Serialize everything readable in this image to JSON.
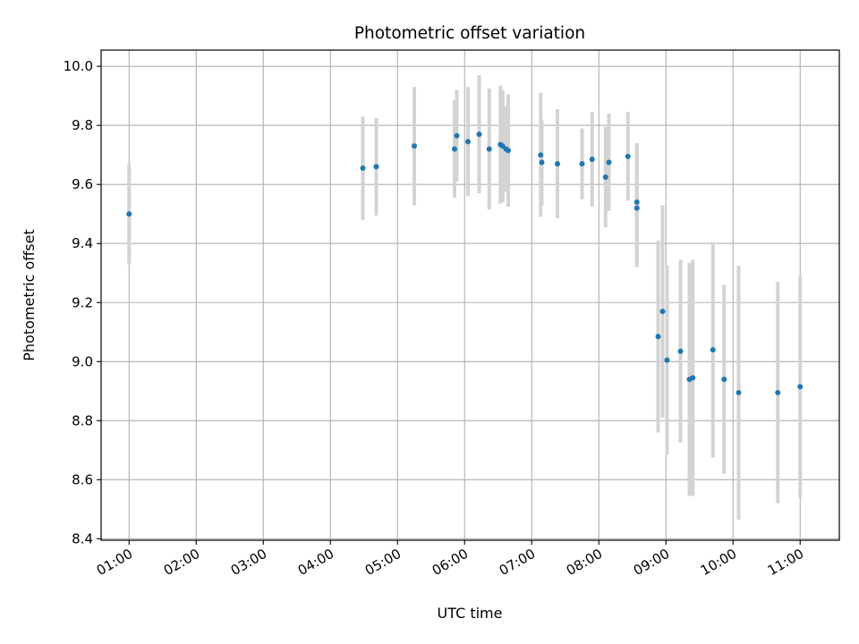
{
  "chart_data": {
    "type": "scatter",
    "title": "Photometric offset variation",
    "xlabel": "UTC time",
    "ylabel": "Photometric offset",
    "xlim": [
      "00:35",
      "11:35"
    ],
    "ylim": [
      8.395,
      10.055
    ],
    "x_ticks": [
      "01:00",
      "02:00",
      "03:00",
      "04:00",
      "05:00",
      "06:00",
      "07:00",
      "08:00",
      "09:00",
      "10:00",
      "11:00"
    ],
    "y_ticks": [
      8.4,
      8.6,
      8.8,
      9.0,
      9.2,
      9.4,
      9.6,
      9.8,
      10.0
    ],
    "y_tick_labels": [
      "8.4",
      "8.6",
      "8.8",
      "9.0",
      "9.2",
      "9.4",
      "9.6",
      "9.8",
      "10.0"
    ],
    "grid": true,
    "marker_color": "#1f77b4",
    "errorbar_color": "#d3d3d3",
    "series": [
      {
        "points": [
          {
            "x": "01:00",
            "y": 9.5,
            "yerr": 0.17
          },
          {
            "x": "04:29",
            "y": 9.655,
            "yerr": 0.175
          },
          {
            "x": "04:41",
            "y": 9.66,
            "yerr": 0.165
          },
          {
            "x": "05:15",
            "y": 9.73,
            "yerr": 0.2
          },
          {
            "x": "05:51",
            "y": 9.72,
            "yerr": 0.165
          },
          {
            "x": "05:53",
            "y": 9.765,
            "yerr": 0.155
          },
          {
            "x": "06:03",
            "y": 9.745,
            "yerr": 0.185
          },
          {
            "x": "06:13",
            "y": 9.77,
            "yerr": 0.2
          },
          {
            "x": "06:22",
            "y": 9.72,
            "yerr": 0.205
          },
          {
            "x": "06:32",
            "y": 9.735,
            "yerr": 0.2
          },
          {
            "x": "06:34",
            "y": 9.73,
            "yerr": 0.19
          },
          {
            "x": "06:37",
            "y": 9.72,
            "yerr": 0.145
          },
          {
            "x": "06:39",
            "y": 9.715,
            "yerr": 0.19
          },
          {
            "x": "07:08",
            "y": 9.7,
            "yerr": 0.21
          },
          {
            "x": "07:09",
            "y": 9.675,
            "yerr": 0.145
          },
          {
            "x": "07:23",
            "y": 9.67,
            "yerr": 0.185
          },
          {
            "x": "07:45",
            "y": 9.67,
            "yerr": 0.12
          },
          {
            "x": "07:54",
            "y": 9.685,
            "yerr": 0.16
          },
          {
            "x": "08:06",
            "y": 9.625,
            "yerr": 0.17
          },
          {
            "x": "08:09",
            "y": 9.675,
            "yerr": 0.165
          },
          {
            "x": "08:26",
            "y": 9.695,
            "yerr": 0.15
          },
          {
            "x": "08:34",
            "y": 9.54,
            "yerr": 0.2
          },
          {
            "x": "08:34",
            "y": 9.52,
            "yerr": 0.2
          },
          {
            "x": "08:53",
            "y": 9.085,
            "yerr": 0.325
          },
          {
            "x": "08:57",
            "y": 9.17,
            "yerr": 0.36
          },
          {
            "x": "09:01",
            "y": 9.005,
            "yerr": 0.32
          },
          {
            "x": "09:13",
            "y": 9.035,
            "yerr": 0.31
          },
          {
            "x": "09:21",
            "y": 8.94,
            "yerr": 0.395
          },
          {
            "x": "09:24",
            "y": 8.945,
            "yerr": 0.4
          },
          {
            "x": "09:42",
            "y": 9.04,
            "yerr": 0.365
          },
          {
            "x": "09:52",
            "y": 8.94,
            "yerr": 0.32
          },
          {
            "x": "10:05",
            "y": 8.895,
            "yerr": 0.43
          },
          {
            "x": "10:40",
            "y": 8.895,
            "yerr": 0.375
          },
          {
            "x": "11:00",
            "y": 8.915,
            "yerr": 0.375
          }
        ]
      }
    ]
  }
}
